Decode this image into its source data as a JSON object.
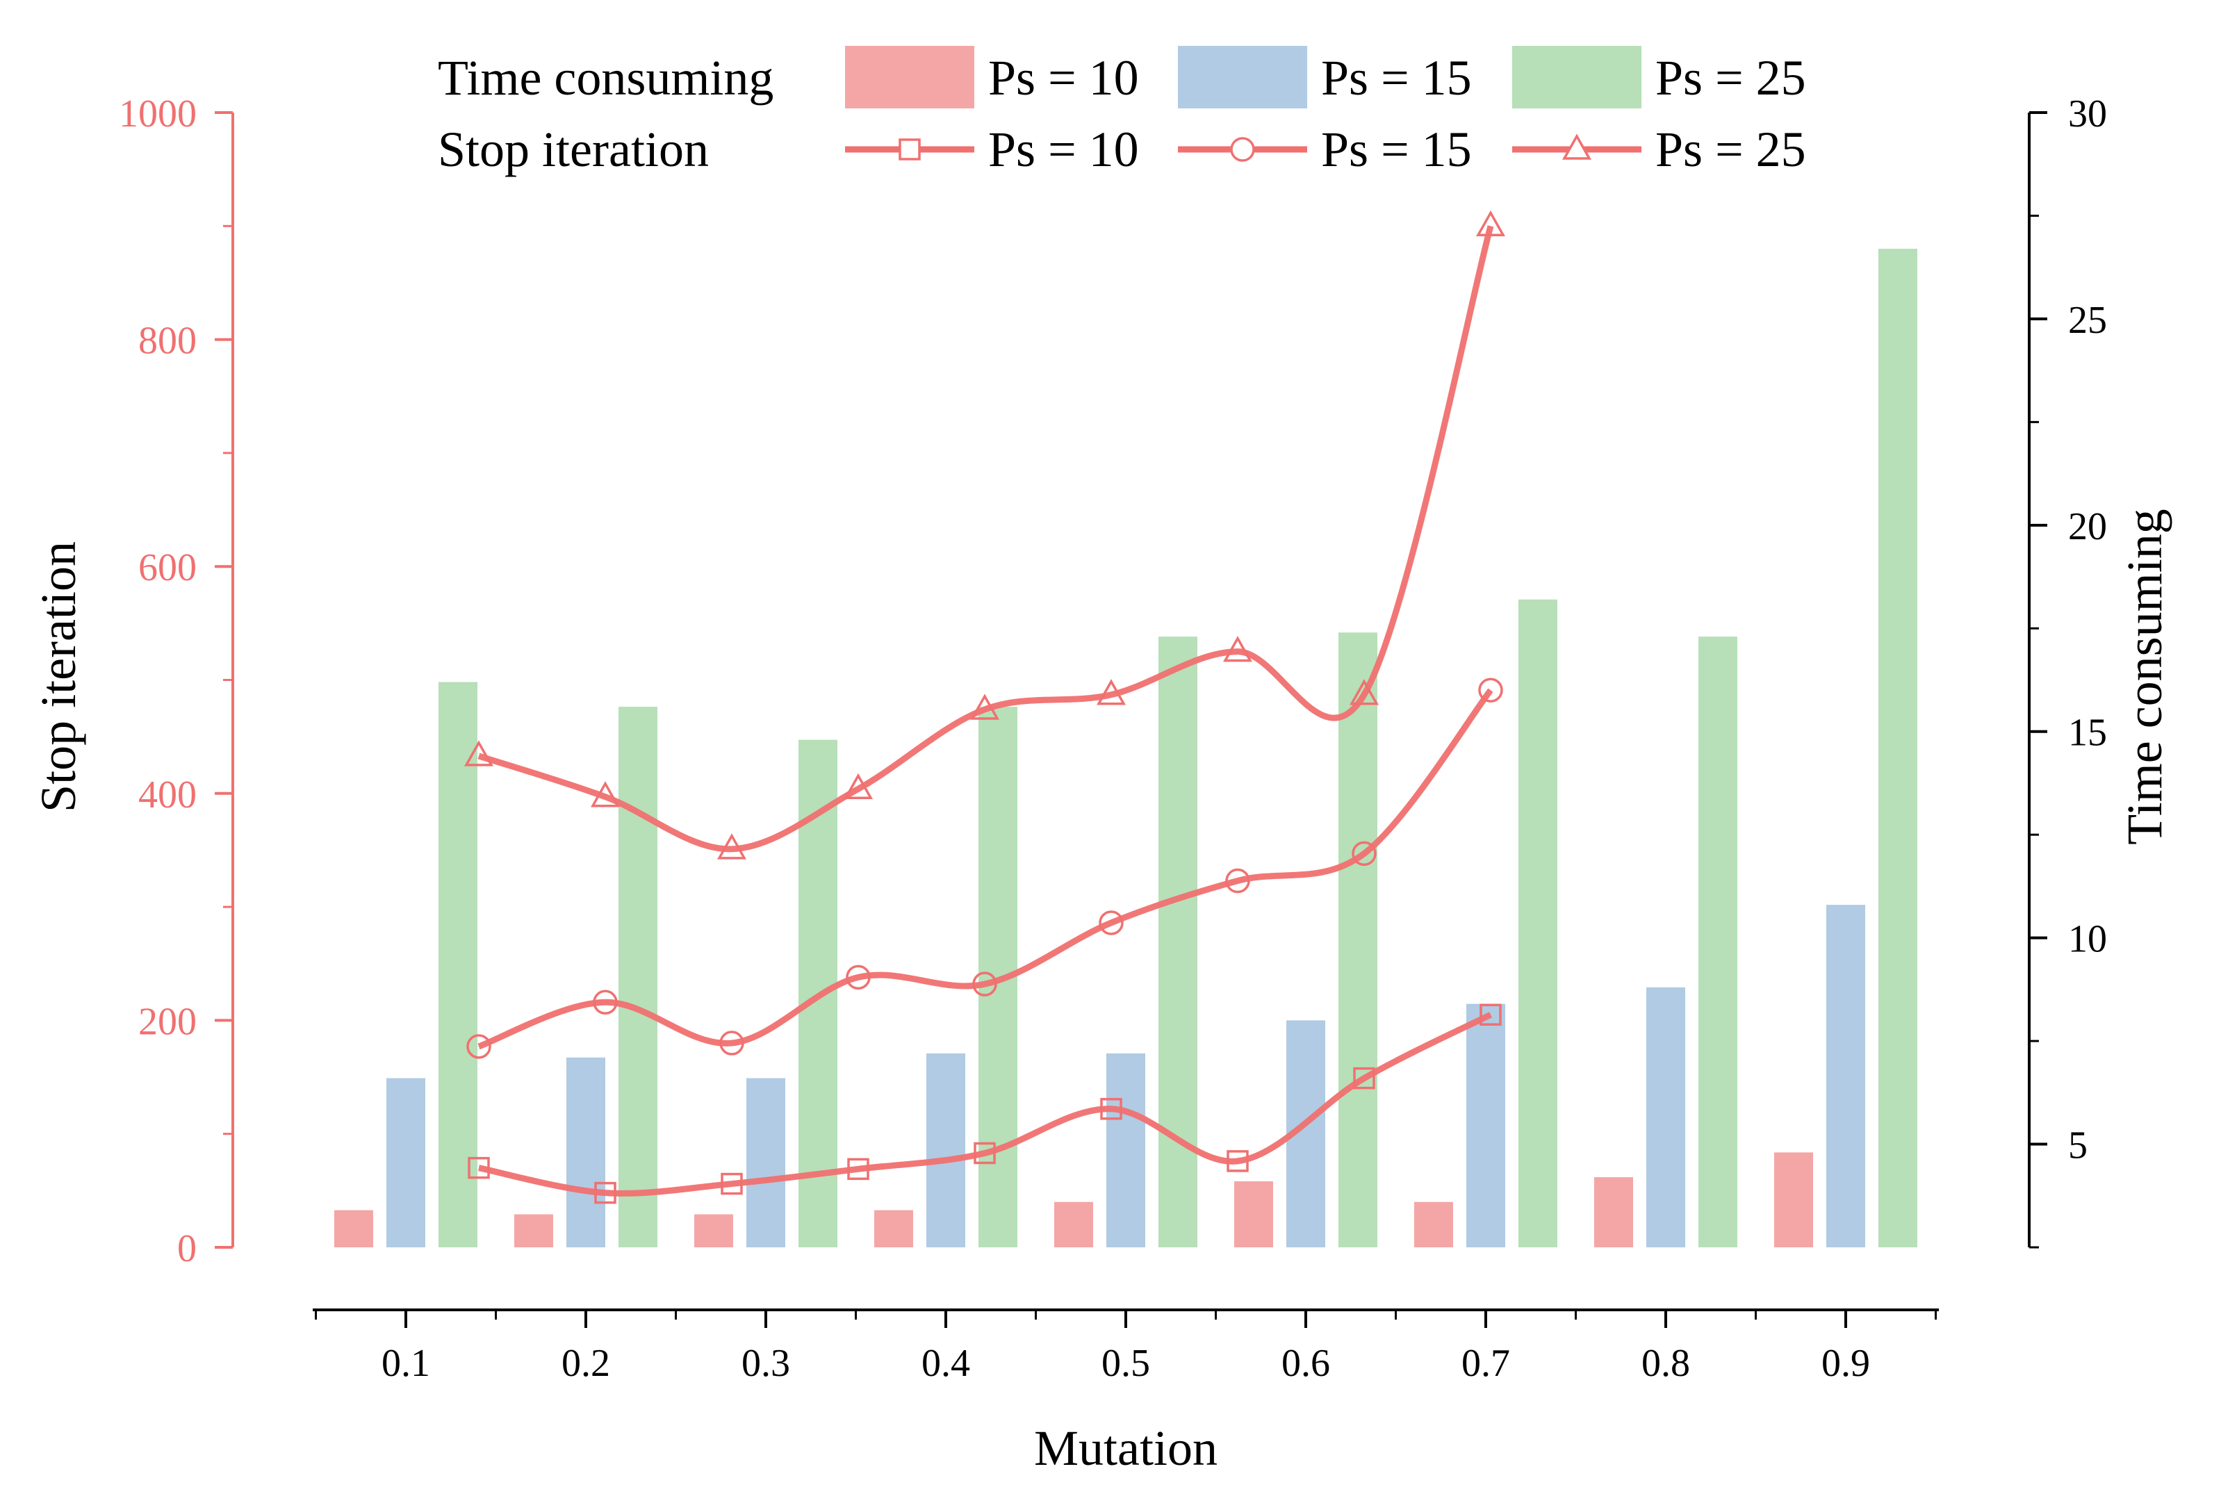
{
  "chart_data": {
    "type": "bar+line (dual axis)",
    "title": "",
    "xlabel": "Mutation",
    "ylabel_left": "Stop iteration",
    "ylabel_right": "Time consuming",
    "ylim_left": [
      0,
      1000
    ],
    "ylim_right": [
      2.5,
      30
    ],
    "yticks_left": [
      "0",
      "200",
      "400",
      "600",
      "800",
      "1000"
    ],
    "yticks_right": [
      "5",
      "10",
      "15",
      "20",
      "25",
      "30"
    ],
    "categories": [
      "0.1",
      "0.2",
      "0.3",
      "0.4",
      "0.5",
      "0.6",
      "0.7",
      "0.8",
      "0.9"
    ],
    "legend": {
      "row1_label": "Time consuming",
      "row2_label": "Stop iteration",
      "series_labels": [
        "Ps = 10",
        "Ps = 15",
        "Ps = 25"
      ]
    },
    "bar_series": [
      {
        "name": "Ps = 10",
        "axis": "right",
        "color": "#f4a6a6",
        "values": [
          3.4,
          3.3,
          3.3,
          3.4,
          3.6,
          4.1,
          3.6,
          4.2,
          4.8
        ]
      },
      {
        "name": "Ps = 15",
        "axis": "right",
        "color": "#b0cbe3",
        "values": [
          6.6,
          7.1,
          6.6,
          7.2,
          7.2,
          8.0,
          8.4,
          8.8,
          10.8
        ]
      },
      {
        "name": "Ps = 25",
        "axis": "right",
        "color": "#b7dfb8",
        "values": [
          16.2,
          15.6,
          14.8,
          15.6,
          17.3,
          17.4,
          18.2,
          17.3,
          26.7
        ]
      }
    ],
    "line_series": [
      {
        "name": "Ps = 10",
        "axis": "left",
        "marker": "square",
        "color": "#f07070",
        "values": [
          70,
          48,
          56,
          69,
          83,
          122,
          76,
          149,
          205
        ]
      },
      {
        "name": "Ps = 15",
        "axis": "left",
        "marker": "circle",
        "color": "#f07070",
        "values": [
          177,
          216,
          180,
          238,
          232,
          286,
          323,
          347,
          491
        ]
      },
      {
        "name": "Ps = 25",
        "axis": "left",
        "marker": "triangle",
        "color": "#f07070",
        "values": [
          433,
          397,
          351,
          404,
          474,
          487,
          525,
          487,
          900
        ]
      }
    ],
    "colors": {
      "left_axis": "#f07070",
      "right_axis": "#000000",
      "x_axis": "#000000"
    }
  }
}
